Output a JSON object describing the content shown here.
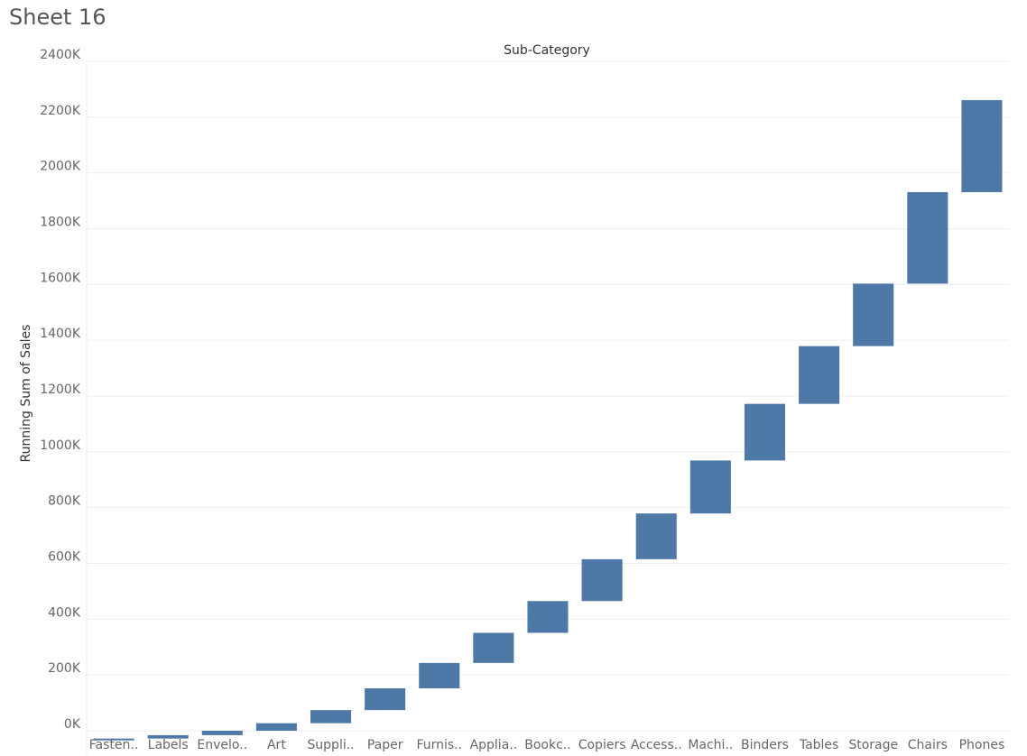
{
  "sheet": {
    "title": "Sheet 16"
  },
  "chart_data": {
    "type": "bar",
    "subtype": "waterfall",
    "column_header": "Sub-Category",
    "ylabel": "Running Sum of Sales",
    "ylim": [
      -100,
      2400
    ],
    "y_ticks": [
      0,
      200,
      400,
      600,
      800,
      1000,
      1200,
      1400,
      1600,
      1800,
      2000,
      2200,
      2400
    ],
    "y_tick_labels": [
      "0K",
      "200K",
      "400K",
      "600K",
      "800K",
      "1000K",
      "1200K",
      "1400K",
      "1600K",
      "1800K",
      "2000K",
      "2200K",
      "2400K"
    ],
    "y_unit": "K",
    "grid": true,
    "bar_color": "#4e79a7",
    "categories": [
      "Fasten..",
      "Labels",
      "Envelo..",
      "Art",
      "Suppli..",
      "Paper",
      "Furnis..",
      "Applia..",
      "Bookc..",
      "Copiers",
      "Access..",
      "Machi..",
      "Binders",
      "Tables",
      "Storage",
      "Chairs",
      "Phones"
    ],
    "segments": [
      {
        "start": -31,
        "end": -28
      },
      {
        "start": -28,
        "end": -16
      },
      {
        "start": -16,
        "end": 0
      },
      {
        "start": 0,
        "end": 27
      },
      {
        "start": 27,
        "end": 74
      },
      {
        "start": 74,
        "end": 152
      },
      {
        "start": 152,
        "end": 243
      },
      {
        "start": 243,
        "end": 351
      },
      {
        "start": 351,
        "end": 465
      },
      {
        "start": 465,
        "end": 615
      },
      {
        "start": 615,
        "end": 779
      },
      {
        "start": 779,
        "end": 969
      },
      {
        "start": 969,
        "end": 1172
      },
      {
        "start": 1172,
        "end": 1379
      },
      {
        "start": 1379,
        "end": 1603
      },
      {
        "start": 1603,
        "end": 1931
      },
      {
        "start": 1931,
        "end": 2261
      }
    ]
  }
}
